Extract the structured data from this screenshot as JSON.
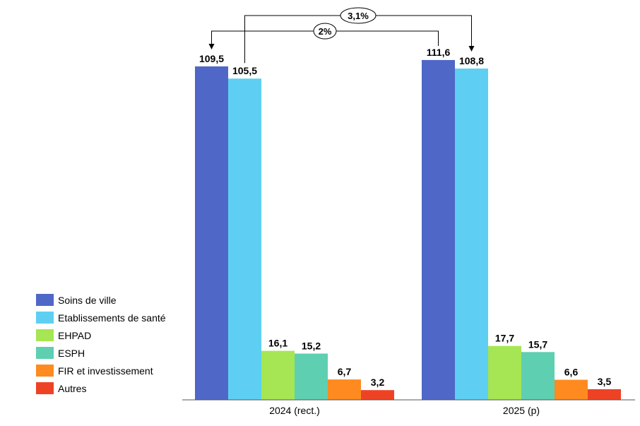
{
  "chart_data": {
    "type": "bar",
    "categories": [
      "2024 (rect.)",
      "2025 (p)"
    ],
    "series": [
      {
        "name": "Soins de ville",
        "color": "#4F67C7",
        "values": [
          109.5,
          111.6
        ],
        "labels": [
          "109,5",
          "111,6"
        ]
      },
      {
        "name": "Etablissements de santé",
        "color": "#5ECFF2",
        "values": [
          105.5,
          108.8
        ],
        "labels": [
          "105,5",
          "108,8"
        ]
      },
      {
        "name": "EHPAD",
        "color": "#A6E553",
        "values": [
          16.1,
          17.7
        ],
        "labels": [
          "16,1",
          "17,7"
        ]
      },
      {
        "name": "ESPH",
        "color": "#5ECFB1",
        "values": [
          15.2,
          15.7
        ],
        "labels": [
          "15,2",
          "15,7"
        ]
      },
      {
        "name": "FIR et investissement",
        "color": "#FF8A1F",
        "values": [
          6.7,
          6.6
        ],
        "labels": [
          "6,7",
          "6,6"
        ]
      },
      {
        "name": "Autres",
        "color": "#EE4225",
        "values": [
          3.2,
          3.5
        ],
        "labels": [
          "3,2",
          "3,5"
        ]
      }
    ],
    "ylim": [
      0,
      109.5
    ],
    "grid": false,
    "legend_position": "bottom-left",
    "annotations": [
      {
        "text": "3,1%",
        "from_series": "Etablissements de santé",
        "from_category": "2024 (rect.)",
        "to_series": "Etablissements de santé",
        "to_category": "2025 (p)"
      },
      {
        "text": "2%",
        "from_series": "Soins de ville",
        "from_category": "2025 (p)",
        "to_series": "Soins de ville",
        "to_category": "2024 (rect.)"
      }
    ]
  }
}
